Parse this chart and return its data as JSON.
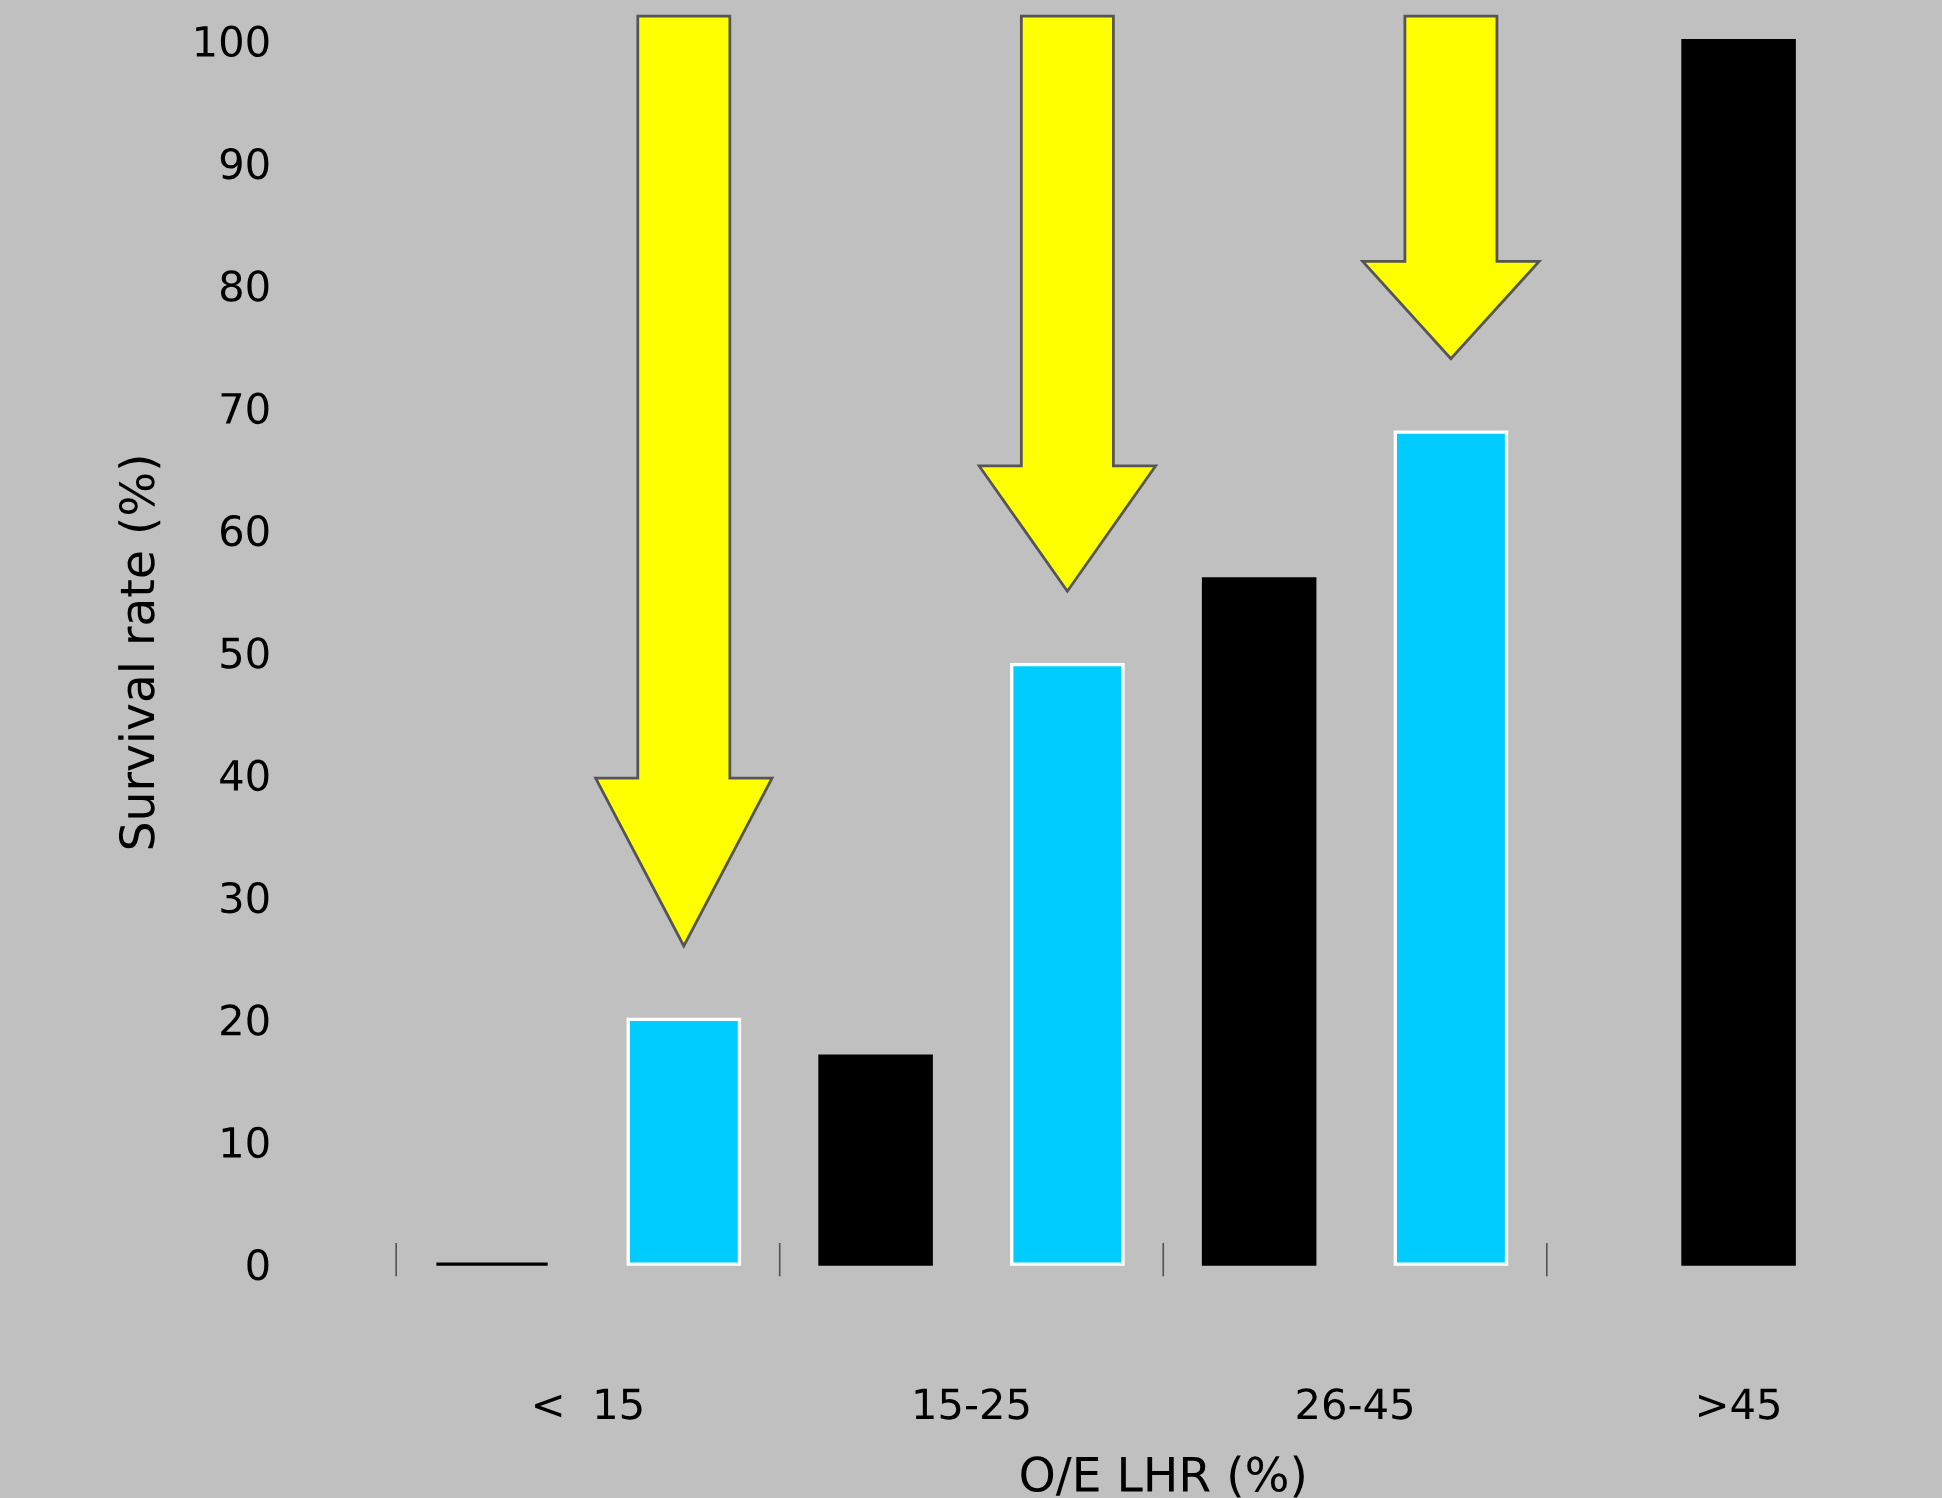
{
  "chart_data": {
    "type": "bar",
    "xlabel": "O/E LHR (%)",
    "ylabel": "Survival rate (%)",
    "categories": [
      "<  15",
      "15-25",
      "26-45",
      ">45"
    ],
    "series": [
      {
        "color": "#000000",
        "values": [
          0,
          17,
          56,
          100
        ]
      },
      {
        "color": "#00ccff",
        "values": [
          20,
          49,
          68,
          null
        ]
      }
    ],
    "ylim": [
      -1,
      101
    ],
    "yticks": [
      0,
      10,
      20,
      30,
      40,
      50,
      60,
      70,
      80,
      90,
      100
    ],
    "grid": false,
    "legend": false
  }
}
